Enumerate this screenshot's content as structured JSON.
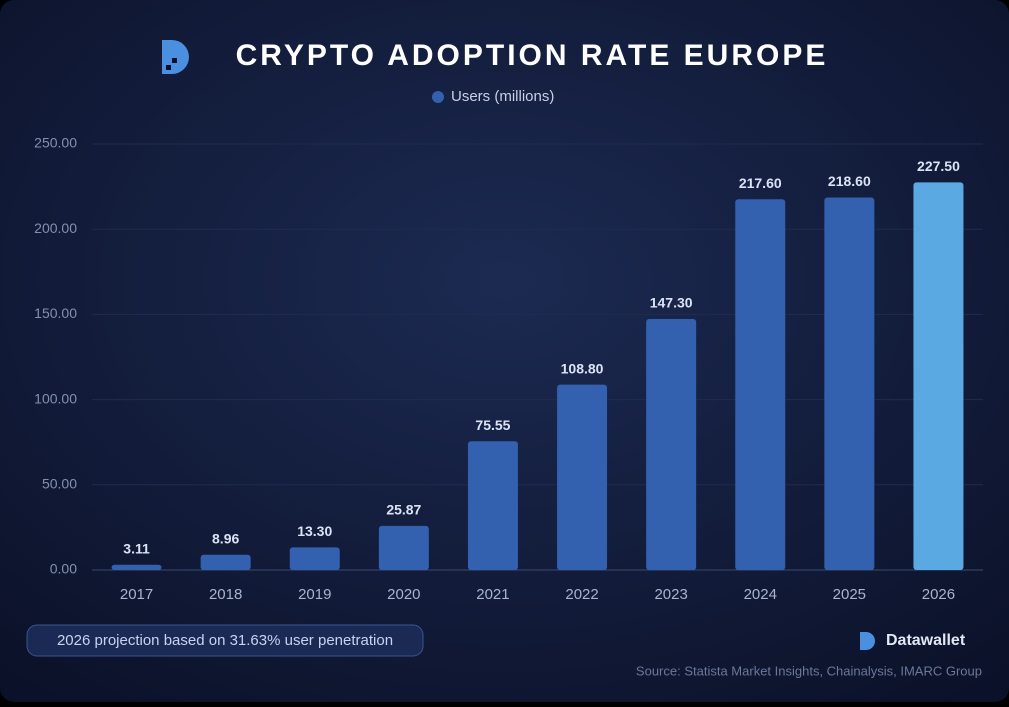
{
  "chart_data": {
    "type": "bar",
    "title": "CRYPTO ADOPTION RATE EUROPE",
    "categories": [
      "2017",
      "2018",
      "2019",
      "2020",
      "2021",
      "2022",
      "2023",
      "2024",
      "2025",
      "2026"
    ],
    "series": [
      {
        "name": "Users (millions)",
        "color": "#3460b0",
        "colors": [
          "#3460b0",
          "#3460b0",
          "#3460b0",
          "#3460b0",
          "#3460b0",
          "#3460b0",
          "#3460b0",
          "#3460b0",
          "#3460b0",
          "#5aa9e2"
        ],
        "values": [
          3.11,
          8.96,
          13.3,
          25.87,
          75.55,
          108.8,
          147.3,
          217.6,
          218.6,
          227.5
        ],
        "value_labels": [
          "3.11",
          "8.96",
          "13.30",
          "25.87",
          "75.55",
          "108.80",
          "147.30",
          "217.60",
          "218.60",
          "227.50"
        ]
      }
    ],
    "ylim": [
      0,
      250
    ],
    "yticks": [
      {
        "value": 0,
        "label": "0.00"
      },
      {
        "value": 50,
        "label": "50.00"
      },
      {
        "value": 100,
        "label": "100.00"
      },
      {
        "value": 150,
        "label": "150.00"
      },
      {
        "value": 200,
        "label": "200.00"
      },
      {
        "value": 250,
        "label": "250.00"
      }
    ],
    "grid": true,
    "note": "2026 projection based on 31.63% user penetration",
    "brand": "Datawallet",
    "source": "Source: Statista Market Insights, Chainalysis, IMARC Group"
  }
}
